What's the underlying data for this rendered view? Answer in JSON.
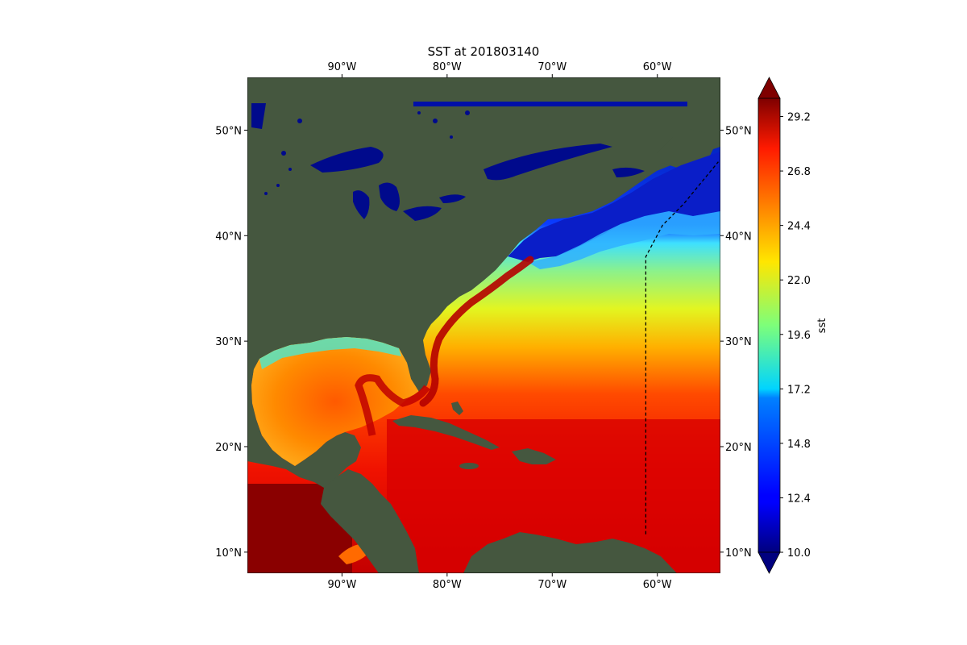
{
  "title": "SST at 201803140",
  "map": {
    "lon_range": [
      -99,
      -54
    ],
    "lat_range": [
      8,
      55
    ],
    "lon_ticks": [
      -90,
      -80,
      -70,
      -60
    ],
    "lon_tick_labels": [
      "90°W",
      "80°W",
      "70°W",
      "60°W"
    ],
    "lat_ticks": [
      10,
      20,
      30,
      40,
      50
    ],
    "lat_tick_labels": [
      "10°N",
      "20°N",
      "30°N",
      "40°N",
      "50°N"
    ],
    "boundary_line": {
      "style": "dashed",
      "color": "#000000",
      "points": [
        [
          -61.1,
          11.7
        ],
        [
          -61.1,
          38
        ],
        [
          -59.5,
          41
        ],
        [
          -57.5,
          43
        ],
        [
          -54.2,
          47
        ]
      ]
    },
    "colors": {
      "ocean_outside": "#4a62a8",
      "land": "#45573f",
      "gulf_stream": "#b50000"
    }
  },
  "colorbar": {
    "label": "sst",
    "range": [
      10.0,
      30.0
    ],
    "extend": "both",
    "ticks": [
      10.0,
      12.4,
      14.8,
      17.2,
      19.6,
      22.0,
      24.4,
      26.8,
      29.2
    ],
    "tick_labels": [
      "10.0",
      "12.4",
      "14.8",
      "17.2",
      "19.6",
      "22.0",
      "24.4",
      "26.8",
      "29.2"
    ]
  }
}
